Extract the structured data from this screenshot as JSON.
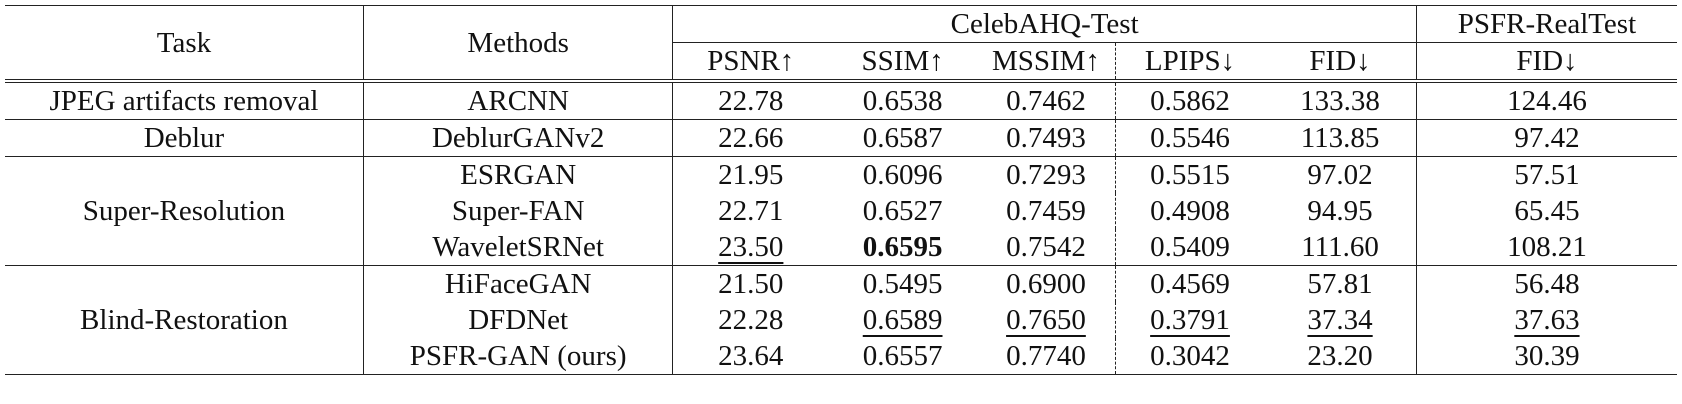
{
  "table": {
    "header": {
      "task": "Task",
      "methods": "Methods",
      "group1": "CelebAHQ-Test",
      "group2": "PSFR-RealTest",
      "metrics": [
        "PSNR↑",
        "SSIM↑",
        "MSSIM↑",
        "LPIPS↓",
        "FID↓",
        "FID↓"
      ]
    },
    "groups": [
      {
        "task": "JPEG artifacts removal",
        "rows": [
          {
            "method": "ARCNN",
            "values": [
              "22.78",
              "0.6538",
              "0.7462",
              "0.5862",
              "133.38",
              "124.46"
            ]
          }
        ]
      },
      {
        "task": "Deblur",
        "rows": [
          {
            "method": "DeblurGANv2",
            "values": [
              "22.66",
              "0.6587",
              "0.7493",
              "0.5546",
              "113.85",
              "97.42"
            ]
          }
        ]
      },
      {
        "task": "Super-Resolution",
        "rows": [
          {
            "method": "ESRGAN",
            "values": [
              "21.95",
              "0.6096",
              "0.7293",
              "0.5515",
              "97.02",
              "57.51"
            ]
          },
          {
            "method": "Super-FAN",
            "values": [
              "22.71",
              "0.6527",
              "0.7459",
              "0.4908",
              "94.95",
              "65.45"
            ]
          },
          {
            "method": "WaveletSRNet",
            "values": [
              "23.50",
              "0.6595",
              "0.7542",
              "0.5409",
              "111.60",
              "108.21"
            ]
          }
        ]
      },
      {
        "task": "Blind-Restoration",
        "rows": [
          {
            "method": "HiFaceGAN",
            "values": [
              "21.50",
              "0.5495",
              "0.6900",
              "0.4569",
              "57.81",
              "56.48"
            ]
          },
          {
            "method": "DFDNet",
            "values": [
              "22.28",
              "0.6589",
              "0.7650",
              "0.3791",
              "37.34",
              "37.63"
            ]
          },
          {
            "method": "PSFR-GAN (ours)",
            "values": [
              "23.64",
              "0.6557",
              "0.7740",
              "0.3042",
              "23.20",
              "30.39"
            ]
          }
        ]
      }
    ]
  }
}
